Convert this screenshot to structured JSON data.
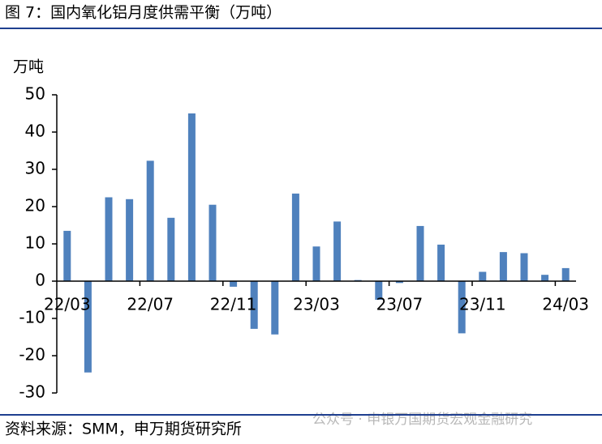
{
  "chart_data": {
    "type": "bar",
    "title": "图 7：国内氧化铝月度供需平衡（万吨）",
    "y_axis_label": "万吨",
    "source": "资料来源：SMM，申万期货研究所",
    "watermark": "公众号 · 申银万国期货宏观金融研究",
    "categories": [
      "22/03",
      null,
      null,
      null,
      "22/07",
      null,
      null,
      null,
      "22/11",
      null,
      null,
      null,
      "23/03",
      null,
      null,
      null,
      "23/07",
      null,
      null,
      null,
      "23/11",
      null,
      null,
      null,
      "24/03"
    ],
    "values": [
      13.5,
      -24.5,
      22.5,
      22,
      32.3,
      17,
      45,
      20.5,
      -1.5,
      -12.8,
      -14.3,
      23.5,
      9.3,
      16,
      0.3,
      -5,
      -0.5,
      14.8,
      9.8,
      -14,
      2.5,
      7.8,
      7.5,
      1.7,
      3.5
    ],
    "color": "#4f81bd",
    "ylim": [
      -30,
      50
    ],
    "yticks": [
      -30,
      -20,
      -10,
      0,
      10,
      20,
      30,
      40,
      50
    ]
  }
}
